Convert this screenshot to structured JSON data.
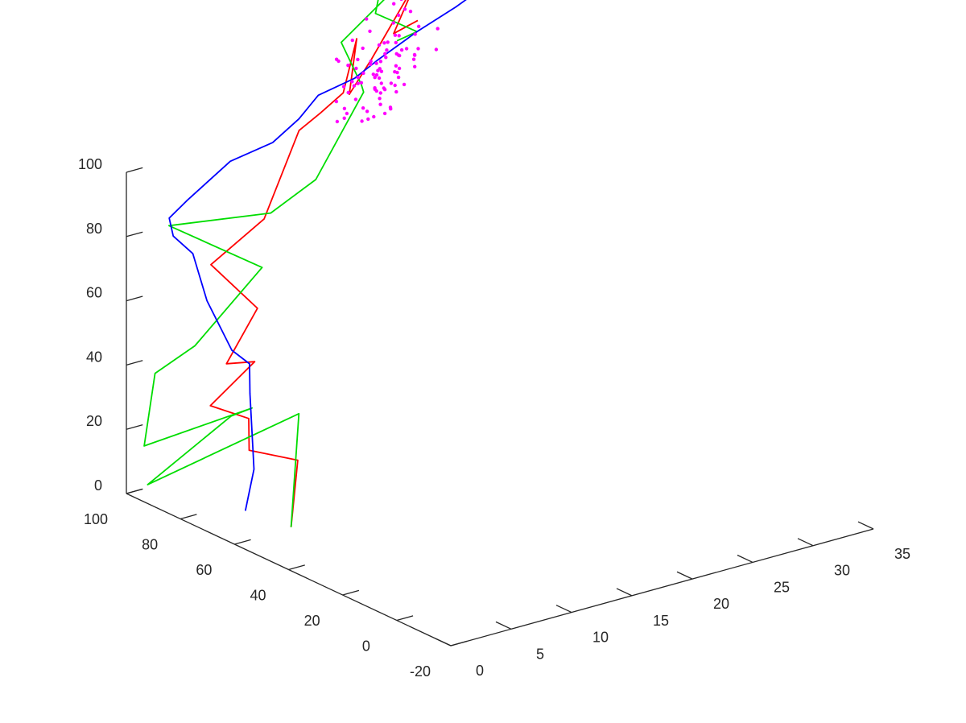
{
  "chart_data": {
    "type": "line",
    "projection": "3d",
    "title": "",
    "xlabel": "",
    "ylabel": "",
    "zlabel": "",
    "xlim": [
      0,
      35
    ],
    "ylim": [
      -20,
      100
    ],
    "zlim": [
      0,
      100
    ],
    "x_ticks": [
      0,
      5,
      10,
      15,
      20,
      25,
      30,
      35
    ],
    "y_ticks": [
      -20,
      0,
      20,
      40,
      60,
      80,
      100
    ],
    "z_ticks": [
      0,
      20,
      40,
      60,
      80,
      100
    ],
    "x_tick_labels": [
      "0",
      "5",
      "10",
      "15",
      "20",
      "25",
      "30",
      "35"
    ],
    "y_tick_labels": [
      "-20",
      "0",
      "20",
      "40",
      "60",
      "80",
      "100"
    ],
    "z_tick_labels": [
      "0",
      "20",
      "40",
      "60",
      "80",
      "100"
    ],
    "grid": false,
    "legend": "none",
    "series": [
      {
        "color": "#ff0000",
        "style": "line",
        "points": [
          [
            2.0,
            48.0,
            8
          ],
          [
            3.0,
            50.0,
            27
          ],
          [
            3.0,
            68.0,
            23
          ],
          [
            0.8,
            58.3,
            39
          ],
          [
            -0.5,
            66.7,
            41
          ],
          [
            1.0,
            57.0,
            57
          ],
          [
            0.0,
            63.0,
            55
          ],
          [
            1.0,
            56.0,
            74
          ],
          [
            -0.5,
            66.5,
            85
          ],
          [
            2.0,
            58.0,
            100
          ],
          [
            4.0,
            54.0,
            127
          ],
          [
            6.0,
            55.0,
            130
          ],
          [
            8.0,
            55.5,
            134
          ],
          [
            9.0,
            55.0,
            150
          ],
          [
            8.5,
            55.5,
            133
          ],
          [
            10.0,
            54.0,
            143
          ],
          [
            13.0,
            51.0,
            165
          ],
          [
            11.5,
            52.5,
            150
          ],
          [
            13.5,
            52.5,
            152
          ]
        ]
      },
      {
        "color": "#00dd00",
        "style": "line",
        "points": [
          [
            2.0,
            48.0,
            8
          ],
          [
            4.3,
            55.4,
            38
          ],
          [
            -2.9,
            79.2,
            14
          ],
          [
            0.5,
            63.5,
            38
          ],
          [
            3.2,
            67.8,
            36
          ],
          [
            -2.0,
            84.5,
            23
          ],
          [
            -3.0,
            76.0,
            50
          ],
          [
            -2.5,
            63.5,
            63
          ],
          [
            1.5,
            56.5,
            86
          ],
          [
            -0.5,
            82.0,
            91
          ],
          [
            3.0,
            60.0,
            100
          ],
          [
            5.5,
            54.5,
            110
          ],
          [
            7.0,
            43.5,
            140
          ],
          [
            9.5,
            55.5,
            135
          ],
          [
            8.5,
            58.5,
            148
          ],
          [
            12.5,
            53.5,
            165
          ],
          [
            10.0,
            57.0,
            163
          ],
          [
            11.0,
            49.0,
            192
          ],
          [
            11.0,
            57.0,
            155
          ],
          [
            14.0,
            55.0,
            147
          ],
          [
            13.0,
            58.0,
            144
          ]
        ]
      },
      {
        "color": "#0000ff",
        "style": "line",
        "points": [
          [
            0.0,
            56.0,
            12
          ],
          [
            1.5,
            59.5,
            22
          ],
          [
            1.5,
            61.0,
            45
          ],
          [
            1.2,
            59.8,
            55
          ],
          [
            0.0,
            61.0,
            60
          ],
          [
            -1.5,
            63.5,
            76
          ],
          [
            -2.0,
            66.5,
            90
          ],
          [
            -2.5,
            71.5,
            94
          ],
          [
            -2.5,
            73.0,
            99
          ],
          [
            -1.0,
            73.0,
            103
          ],
          [
            2.0,
            70.5,
            113
          ],
          [
            4.5,
            66.0,
            118
          ],
          [
            6.0,
            63.0,
            125
          ],
          [
            7.5,
            62.5,
            131
          ],
          [
            9.5,
            58.0,
            136
          ],
          [
            11.0,
            56.0,
            141
          ],
          [
            14.0,
            55.0,
            147
          ],
          [
            17.0,
            54.0,
            152
          ],
          [
            20.0,
            53.0,
            158
          ],
          [
            23.0,
            52.0,
            163
          ]
        ]
      },
      {
        "color": "#ff00ff",
        "style": "markers",
        "points": [
          [
            9.8,
            56.1,
            138
          ],
          [
            12.7,
            51.6,
            156
          ],
          [
            11.4,
            55.5,
            146
          ],
          [
            13.1,
            51.9,
            142
          ],
          [
            10.4,
            59.0,
            144
          ],
          [
            8.1,
            58.5,
            130
          ],
          [
            12.3,
            55.1,
            130
          ],
          [
            12.6,
            54.4,
            143
          ],
          [
            9.8,
            58.1,
            134
          ],
          [
            13.0,
            54.4,
            143
          ],
          [
            7.7,
            55.9,
            144
          ],
          [
            11.9,
            52.3,
            149
          ],
          [
            13.2,
            52.3,
            138
          ],
          [
            12.3,
            51.9,
            157
          ],
          [
            11.0,
            57.2,
            135
          ],
          [
            10.8,
            54.5,
            139
          ],
          [
            11.4,
            56.6,
            133
          ],
          [
            8.0,
            55.3,
            136
          ],
          [
            9.2,
            52.3,
            157
          ],
          [
            11.6,
            52.1,
            140
          ],
          [
            7.7,
            56.4,
            125
          ],
          [
            8.1,
            55.5,
            129
          ],
          [
            11.2,
            52.1,
            135
          ],
          [
            11.0,
            55.1,
            131
          ],
          [
            9.6,
            57.9,
            139
          ],
          [
            11.8,
            56.4,
            143
          ],
          [
            10.1,
            58.0,
            122
          ],
          [
            11.3,
            56.4,
            140
          ],
          [
            10.8,
            54.7,
            136
          ],
          [
            7.8,
            57.1,
            144
          ],
          [
            11.0,
            53.9,
            133
          ],
          [
            8.6,
            54.8,
            150
          ],
          [
            12.3,
            55.7,
            136
          ],
          [
            11.8,
            57.1,
            123
          ],
          [
            9.6,
            57.3,
            142
          ],
          [
            12.0,
            53.4,
            137
          ],
          [
            12.9,
            50.8,
            149
          ],
          [
            9.7,
            59.1,
            133
          ],
          [
            9.7,
            56.4,
            135
          ],
          [
            14.7,
            50.5,
            149
          ],
          [
            12.6,
            55.6,
            134
          ],
          [
            10.8,
            57.8,
            140
          ],
          [
            10.4,
            54.5,
            133
          ],
          [
            12.1,
            51.3,
            134
          ],
          [
            11.5,
            50.4,
            140
          ],
          [
            8.8,
            57.3,
            141
          ],
          [
            10.9,
            55.2,
            146
          ],
          [
            9.7,
            58.5,
            129
          ],
          [
            10.5,
            55.4,
            124
          ],
          [
            12.6,
            56.9,
            131
          ],
          [
            10.1,
            54.8,
            141
          ],
          [
            12.4,
            55.7,
            145
          ],
          [
            8.8,
            58.7,
            124
          ],
          [
            13.6,
            51.5,
            161
          ],
          [
            9.0,
            58.1,
            132
          ],
          [
            9.1,
            59.1,
            125
          ],
          [
            11.4,
            51.5,
            150
          ],
          [
            12.0,
            52.9,
            155
          ],
          [
            11.3,
            56.1,
            137
          ],
          [
            13.4,
            53.2,
            141
          ],
          [
            12.2,
            53.8,
            142
          ],
          [
            11.3,
            54.8,
            143
          ],
          [
            11.7,
            54.6,
            126
          ],
          [
            10.4,
            57.4,
            125
          ],
          [
            10.5,
            54.4,
            141
          ],
          [
            10.9,
            56.8,
            132
          ],
          [
            9.0,
            56.7,
            136
          ],
          [
            11.6,
            52.9,
            159
          ],
          [
            9.4,
            56.3,
            137
          ],
          [
            11.9,
            53.2,
            143
          ],
          [
            14.8,
            51.5,
            142
          ],
          [
            10.2,
            54.2,
            138
          ],
          [
            11.5,
            57.4,
            126
          ],
          [
            10.3,
            56.6,
            123
          ],
          [
            11.8,
            51.0,
            161
          ],
          [
            11.2,
            57.0,
            137
          ],
          [
            11.6,
            53.0,
            153
          ],
          [
            10.2,
            58.0,
            126
          ],
          [
            9.8,
            53.7,
            152
          ],
          [
            11.9,
            55.4,
            125
          ],
          [
            12.2,
            53.5,
            142
          ],
          [
            11.3,
            53.8,
            147
          ],
          [
            13.6,
            52.8,
            143
          ],
          [
            11.0,
            56.6,
            131
          ],
          [
            12.9,
            51.3,
            141
          ],
          [
            11.3,
            54.5,
            142
          ],
          [
            10.7,
            54.1,
            130
          ],
          [
            13.6,
            52.6,
            150
          ],
          [
            11.6,
            56.2,
            131
          ],
          [
            10.3,
            53.4,
            138
          ]
        ]
      }
    ]
  }
}
